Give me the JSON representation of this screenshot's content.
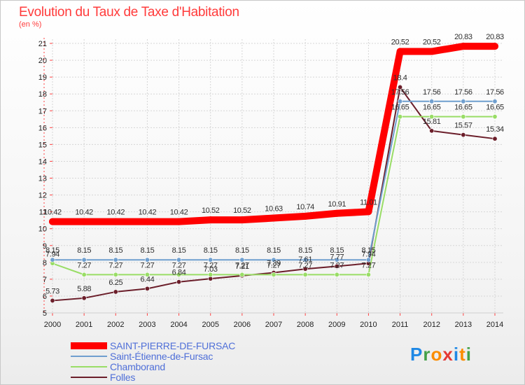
{
  "header": {
    "title": "Evolution du Taux de Taxe d'Habitation",
    "unit": "(en %)"
  },
  "brand": {
    "letters": [
      "P",
      "r",
      "o",
      "x",
      "i",
      "t",
      "i"
    ],
    "colors": [
      "#1e88e5",
      "#43a047",
      "#fb8c00",
      "#e53935",
      "#1e88e5",
      "#fb8c00",
      "#43a047"
    ]
  },
  "chart_data": {
    "type": "line",
    "title": "Evolution du Taux de Taxe d'Habitation",
    "ylabel": "(en %)",
    "xlabel": "",
    "x": [
      "2000",
      "2001",
      "2002",
      "2003",
      "2004",
      "2005",
      "2006",
      "2007",
      "2008",
      "2009",
      "2010",
      "2011",
      "2012",
      "2013",
      "2014"
    ],
    "ylim": [
      5,
      21
    ],
    "yticks": [
      5,
      6,
      7,
      8,
      9,
      10,
      11,
      12,
      13,
      14,
      15,
      16,
      17,
      18,
      19,
      20,
      21
    ],
    "grid": true,
    "legend_position": "bottom-left",
    "series": [
      {
        "name": "SAINT-PIERRE-DE-FURSAC",
        "color": "#ff0000",
        "values": [
          10.42,
          10.42,
          10.42,
          10.42,
          10.42,
          10.52,
          10.52,
          10.63,
          10.74,
          10.91,
          11.01,
          20.52,
          20.52,
          20.83,
          20.83
        ],
        "labels": [
          "10.42",
          "10.42",
          "10.42",
          "10.42",
          "10.42",
          "10.52",
          "10.52",
          "10.63",
          "10.74",
          "10.91",
          "11.01",
          "20.52",
          "20.52",
          "20.83",
          "20.83"
        ]
      },
      {
        "name": "Saint-Étienne-de-Fursac",
        "color": "#6f9fcf",
        "values": [
          8.15,
          8.15,
          8.15,
          8.15,
          8.15,
          8.15,
          8.15,
          8.15,
          8.15,
          8.15,
          8.15,
          17.56,
          17.56,
          17.56,
          17.56
        ],
        "labels": [
          "8.15",
          "8.15",
          "8.15",
          "8.15",
          "8.15",
          "8.15",
          "8.15",
          "8.15",
          "8.15",
          "8.15",
          "8.15",
          "17.56",
          "17.56",
          "17.56",
          "17.56"
        ]
      },
      {
        "name": "Chamborand",
        "color": "#99dd66",
        "values": [
          7.94,
          7.27,
          7.27,
          7.27,
          7.27,
          7.27,
          7.27,
          7.27,
          7.27,
          7.27,
          7.27,
          16.65,
          16.65,
          16.65,
          16.65
        ],
        "labels": [
          "7.94",
          "7.27",
          "7.27",
          "7.27",
          "7.27",
          "7.27",
          "7.27",
          "7.27",
          "7.27",
          "7.27",
          "7.27",
          "16.65",
          "16.65",
          "16.65",
          "16.65"
        ]
      },
      {
        "name": "Folles",
        "color": "#6b1e2a",
        "values": [
          5.73,
          5.88,
          6.25,
          6.44,
          6.84,
          7.03,
          7.21,
          7.39,
          7.61,
          7.77,
          7.94,
          18.4,
          15.81,
          15.57,
          15.34
        ],
        "labels": [
          "5.73",
          "5.88",
          "6.25",
          "6.44",
          "6.84",
          "7.03",
          "7.21",
          "7.39",
          "7.61",
          "7.77",
          "7.94",
          "18.4",
          "15.81",
          "15.57",
          "15.34"
        ]
      }
    ]
  }
}
